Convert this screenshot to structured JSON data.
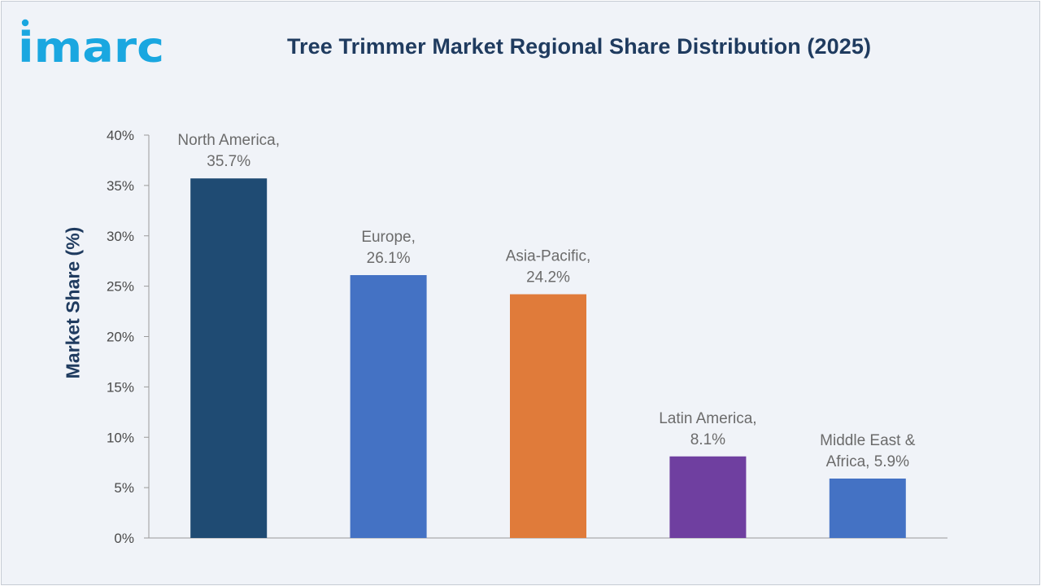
{
  "brand": {
    "logo_text": "imarc",
    "logo_color": "#1aa7e0"
  },
  "chart_data": {
    "type": "bar",
    "title": "Tree Trimmer Market Regional Share Distribution (2025)",
    "ylabel": "Market Share (%)",
    "xlabel": "",
    "ylim": [
      0,
      40
    ],
    "yticks": [
      0,
      5,
      10,
      15,
      20,
      25,
      30,
      35,
      40
    ],
    "ytick_labels": [
      "0%",
      "5%",
      "10%",
      "15%",
      "20%",
      "25%",
      "30%",
      "35%",
      "40%"
    ],
    "grid": false,
    "categories": [
      "North America",
      "Europe",
      "Asia-Pacific",
      "Latin America",
      "Middle East & Africa"
    ],
    "values": [
      35.7,
      26.1,
      24.2,
      8.1,
      5.9
    ],
    "data_labels": [
      [
        "North America,",
        "35.7%"
      ],
      [
        "Europe,",
        "26.1%"
      ],
      [
        "Asia-Pacific,",
        "24.2%"
      ],
      [
        "Latin America,",
        "8.1%"
      ],
      [
        "Middle East &",
        "Africa, 5.9%"
      ]
    ],
    "colors": [
      "#1f4b73",
      "#4472c4",
      "#e07b3a",
      "#6f3fa0",
      "#4472c4"
    ]
  }
}
